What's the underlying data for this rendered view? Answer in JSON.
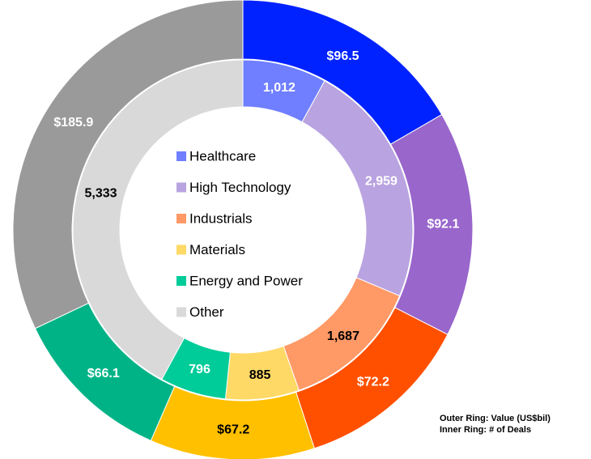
{
  "chart_data": {
    "type": "donut",
    "categories": [
      "Healthcare",
      "High Technology",
      "Industrials",
      "Materials",
      "Energy and Power",
      "Other"
    ],
    "series": [
      {
        "name": "Outer Ring: Value (US$bil)",
        "values": [
          96.5,
          92.1,
          72.2,
          67.2,
          66.1,
          185.9
        ],
        "value_labels": [
          "$96.5",
          "$92.1",
          "$72.2",
          "$67.2",
          "$66.1",
          "$185.9"
        ],
        "colors": [
          "#0022ff",
          "#9966cc",
          "#ff5000",
          "#ffc000",
          "#00b386",
          "#9a9a9a"
        ],
        "label_colors": [
          "#ffffff",
          "#ffffff",
          "#ffffff",
          "#000000",
          "#ffffff",
          "#ffffff"
        ]
      },
      {
        "name": "Inner Ring: # of Deals",
        "values": [
          1012,
          2959,
          1687,
          885,
          796,
          5333
        ],
        "value_labels": [
          "1,012",
          "2,959",
          "1,687",
          "885",
          "796",
          "5,333"
        ],
        "colors": [
          "#6f7fff",
          "#b9a3e0",
          "#ff9966",
          "#ffd966",
          "#00cc99",
          "#d9d9d9"
        ],
        "label_colors": [
          "#ffffff",
          "#ffffff",
          "#000000",
          "#000000",
          "#ffffff",
          "#000000"
        ]
      }
    ]
  }
}
